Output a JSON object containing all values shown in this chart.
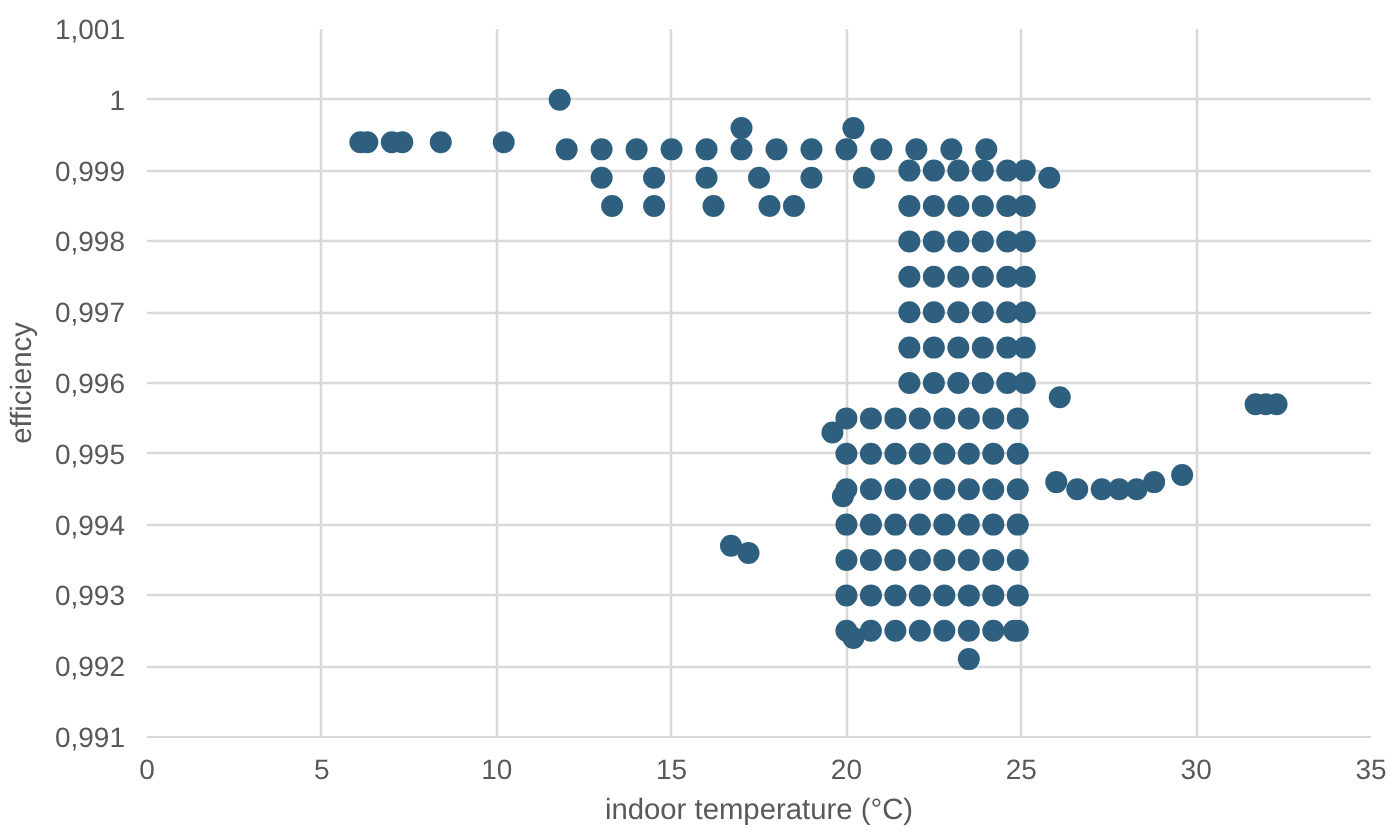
{
  "chart_data": {
    "type": "scatter",
    "xlabel": "indoor temperature (°C)",
    "ylabel": "efficiency",
    "marker": "circle",
    "grid": true,
    "xlim": [
      0,
      35
    ],
    "xticks": [
      0,
      5,
      10,
      15,
      20,
      25,
      30,
      35
    ],
    "ylim": [
      0.991,
      1.001
    ],
    "yticks": [
      {
        "value": 0.991,
        "label": "0,991"
      },
      {
        "value": 0.992,
        "label": "0,992"
      },
      {
        "value": 0.993,
        "label": "0,993"
      },
      {
        "value": 0.994,
        "label": "0,994"
      },
      {
        "value": 0.995,
        "label": "0,995"
      },
      {
        "value": 0.996,
        "label": "0,996"
      },
      {
        "value": 0.997,
        "label": "0,997"
      },
      {
        "value": 0.998,
        "label": "0,998"
      },
      {
        "value": 0.999,
        "label": "0,999"
      },
      {
        "value": 1,
        "label": "1"
      },
      {
        "value": 1.001,
        "label": "1,001"
      }
    ],
    "series": [
      {
        "color": "#2e5f7e",
        "x": [
          20.0,
          20.7,
          21.4,
          22.1,
          22.8,
          23.5,
          24.2,
          24.9,
          20.0,
          20.7,
          21.4,
          22.1,
          22.8,
          23.5,
          24.2,
          24.9,
          20.0,
          20.7,
          21.4,
          22.1,
          22.8,
          23.5,
          24.2,
          24.9,
          20.0,
          20.7,
          21.4,
          22.1,
          22.8,
          23.5,
          24.2,
          24.9,
          20.0,
          20.7,
          21.4,
          22.1,
          22.8,
          23.5,
          24.2,
          24.9,
          20.0,
          20.7,
          21.4,
          22.1,
          22.8,
          23.5,
          24.2,
          24.9,
          20.0,
          20.7,
          21.4,
          22.1,
          22.8,
          23.5,
          24.2,
          24.9,
          21.8,
          22.5,
          23.2,
          23.9,
          24.6,
          25.1,
          21.8,
          22.5,
          23.2,
          23.9,
          24.6,
          25.1,
          21.8,
          22.5,
          23.2,
          23.9,
          24.6,
          25.1,
          21.8,
          22.5,
          23.2,
          23.9,
          24.6,
          25.1,
          21.8,
          22.5,
          23.2,
          23.9,
          24.6,
          25.1,
          21.8,
          22.5,
          23.2,
          23.9,
          24.6,
          25.1,
          21.8,
          22.5,
          23.2,
          23.9,
          24.6,
          25.1,
          12,
          13,
          14,
          15,
          16,
          17,
          18,
          19,
          20,
          21,
          22,
          23,
          24,
          13,
          14.5,
          16,
          17.5,
          19,
          20.5,
          13.3,
          14.5,
          16.2,
          17.8,
          18.5,
          17,
          20.2,
          11.8,
          6.1,
          6.3,
          7.0,
          7.3,
          8.4,
          10.2,
          26.0,
          26.6,
          27.3,
          27.8,
          28.3,
          28.8,
          29.6,
          31.7,
          32.0,
          32.3,
          16.7,
          17.2,
          23.5,
          20.2,
          19.9,
          26.1,
          25.8,
          19.6,
          24.8
        ],
        "values": [
          0.9925,
          0.9925,
          0.9925,
          0.9925,
          0.9925,
          0.9925,
          0.9925,
          0.9925,
          0.993,
          0.993,
          0.993,
          0.993,
          0.993,
          0.993,
          0.993,
          0.993,
          0.9935,
          0.9935,
          0.9935,
          0.9935,
          0.9935,
          0.9935,
          0.9935,
          0.9935,
          0.994,
          0.994,
          0.994,
          0.994,
          0.994,
          0.994,
          0.994,
          0.994,
          0.9945,
          0.9945,
          0.9945,
          0.9945,
          0.9945,
          0.9945,
          0.9945,
          0.9945,
          0.995,
          0.995,
          0.995,
          0.995,
          0.995,
          0.995,
          0.995,
          0.995,
          0.9955,
          0.9955,
          0.9955,
          0.9955,
          0.9955,
          0.9955,
          0.9955,
          0.9955,
          0.996,
          0.996,
          0.996,
          0.996,
          0.996,
          0.996,
          0.9965,
          0.9965,
          0.9965,
          0.9965,
          0.9965,
          0.9965,
          0.997,
          0.997,
          0.997,
          0.997,
          0.997,
          0.997,
          0.9975,
          0.9975,
          0.9975,
          0.9975,
          0.9975,
          0.9975,
          0.998,
          0.998,
          0.998,
          0.998,
          0.998,
          0.998,
          0.9985,
          0.9985,
          0.9985,
          0.9985,
          0.9985,
          0.9985,
          0.999,
          0.999,
          0.999,
          0.999,
          0.999,
          0.999,
          0.9993,
          0.9993,
          0.9993,
          0.9993,
          0.9993,
          0.9993,
          0.9993,
          0.9993,
          0.9993,
          0.9993,
          0.9993,
          0.9993,
          0.9993,
          0.9989,
          0.9989,
          0.9989,
          0.9989,
          0.9989,
          0.9989,
          0.9985,
          0.9985,
          0.9985,
          0.9985,
          0.9985,
          0.9996,
          0.9996,
          1.0,
          0.9994,
          0.9994,
          0.9994,
          0.9994,
          0.9994,
          0.9994,
          0.9946,
          0.9945,
          0.9945,
          0.9945,
          0.9945,
          0.9946,
          0.9947,
          0.9957,
          0.9957,
          0.9957,
          0.9937,
          0.9936,
          0.9921,
          0.9924,
          0.9944,
          0.9958,
          0.9989,
          0.9953,
          0.9925
        ]
      }
    ]
  }
}
